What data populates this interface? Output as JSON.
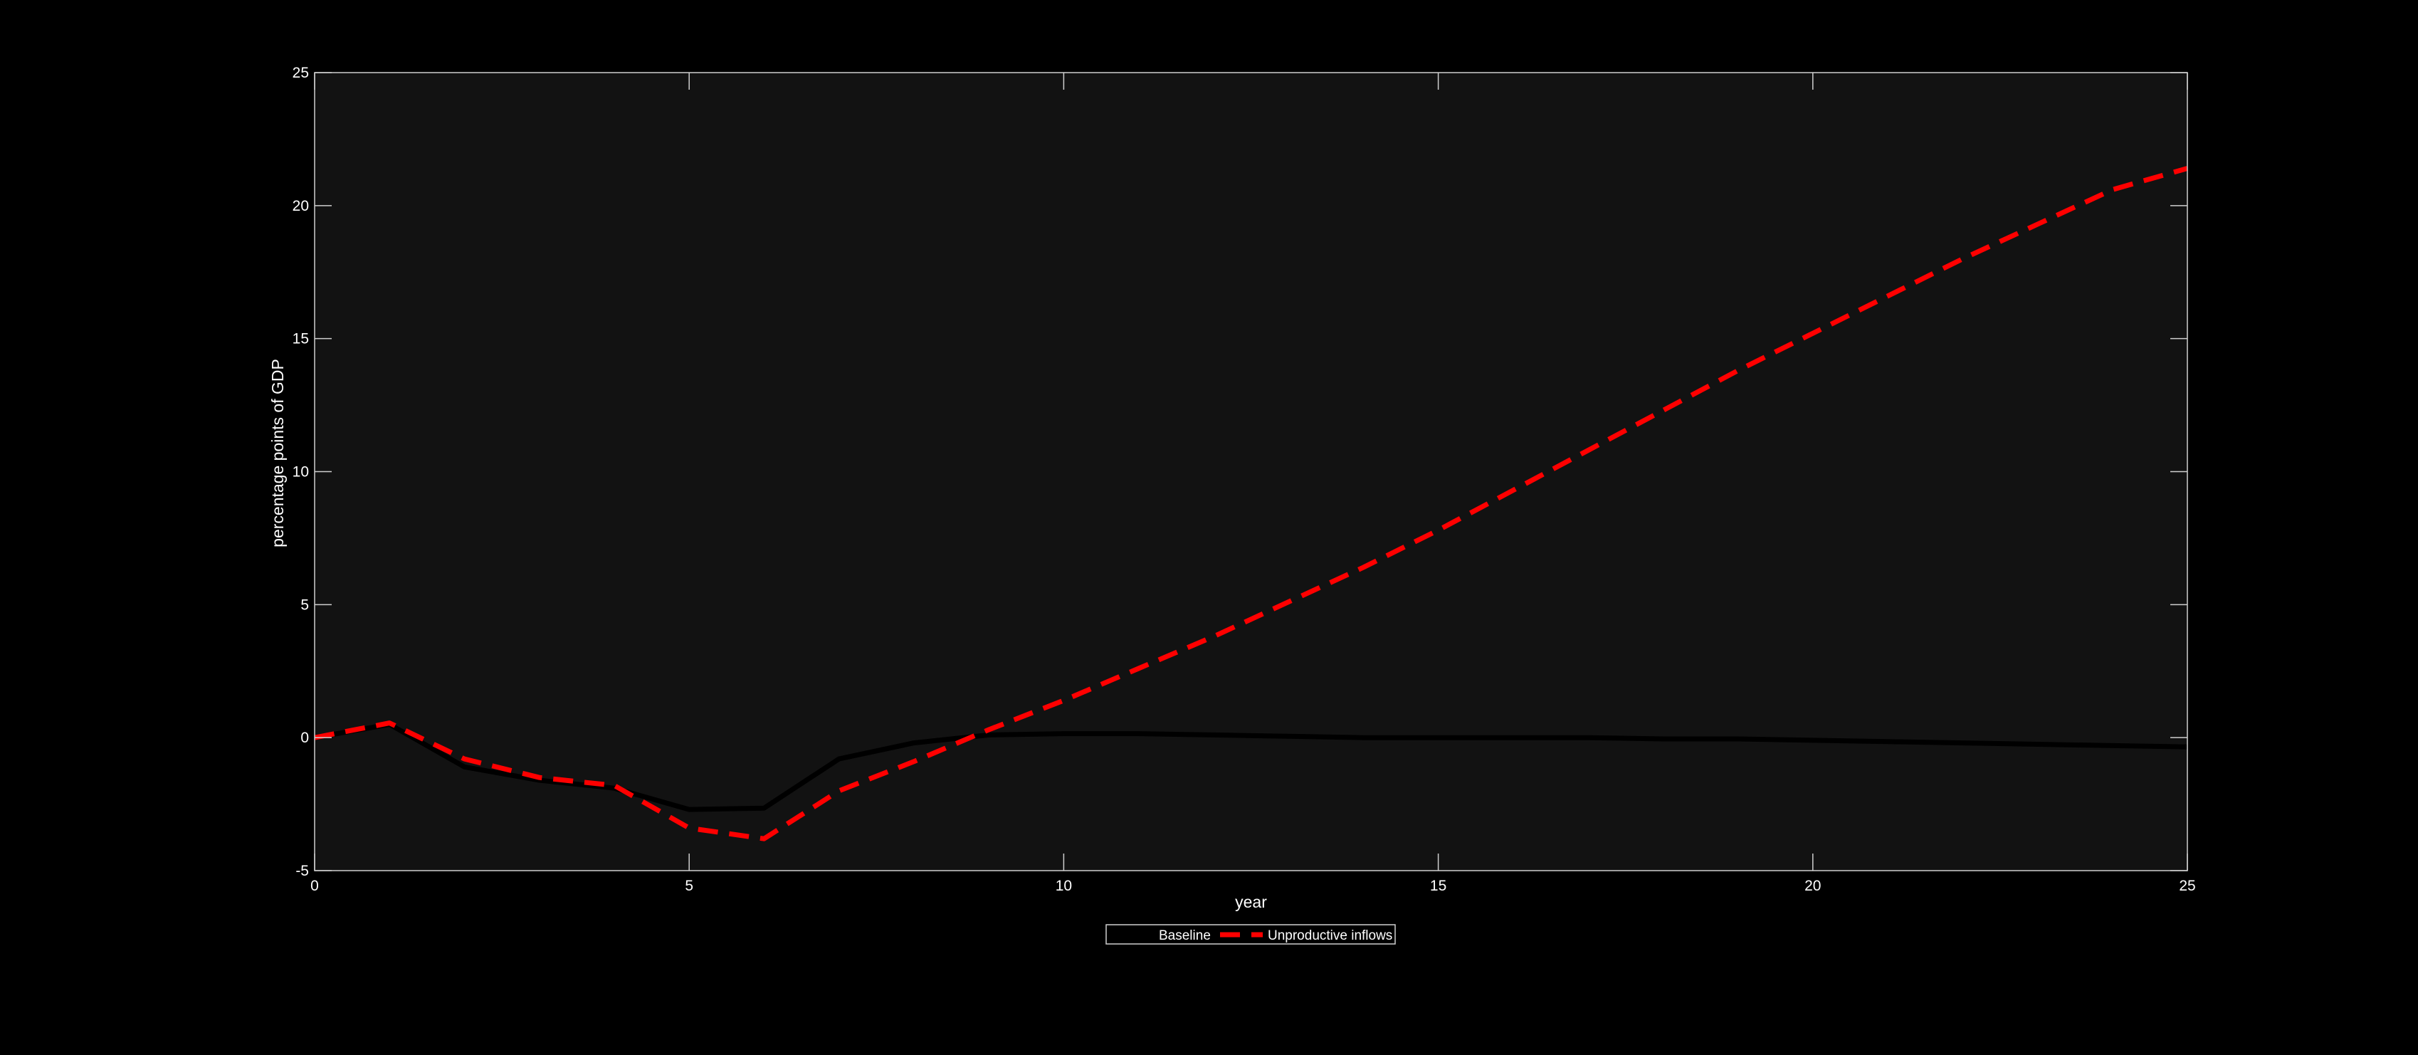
{
  "chart_data": {
    "type": "line",
    "title": "",
    "xlabel": "year",
    "ylabel": "percentage points of GDP",
    "xlim": [
      0,
      25
    ],
    "ylim": [
      -5,
      25
    ],
    "xticks": [
      0,
      5,
      10,
      15,
      20,
      25
    ],
    "yticks": [
      -5,
      0,
      5,
      10,
      15,
      20,
      25
    ],
    "grid": false,
    "legend": "bottom-center-outside",
    "background": "#121212",
    "series": [
      {
        "name": "Baseline",
        "color": "#000000",
        "style": "solid",
        "x": [
          0,
          1,
          2,
          3,
          4,
          5,
          6,
          7,
          8,
          9,
          10,
          11,
          12,
          13,
          14,
          15,
          16,
          17,
          18,
          19,
          20,
          21,
          22,
          23,
          24,
          25
        ],
        "y": [
          0,
          0.5,
          -1.1,
          -1.6,
          -1.9,
          -2.7,
          -2.65,
          -0.8,
          -0.2,
          0.1,
          0.15,
          0.15,
          0.1,
          0.05,
          0.0,
          0.0,
          0.0,
          0.0,
          -0.05,
          -0.05,
          -0.1,
          -0.15,
          -0.2,
          -0.25,
          -0.3,
          -0.35
        ]
      },
      {
        "name": "Unproductive inflows",
        "color": "#ff0000",
        "style": "dashed",
        "x": [
          0,
          1,
          2,
          3,
          4,
          5,
          6,
          7,
          8,
          9,
          10,
          11,
          12,
          13,
          14,
          15,
          16,
          17,
          18,
          19,
          20,
          21,
          22,
          23,
          24,
          25
        ],
        "y": [
          0,
          0.55,
          -0.8,
          -1.5,
          -1.8,
          -3.4,
          -3.8,
          -2.0,
          -0.9,
          0.3,
          1.4,
          2.6,
          3.8,
          5.1,
          6.4,
          7.8,
          9.3,
          10.8,
          12.3,
          13.8,
          15.2,
          16.6,
          18.0,
          19.3,
          20.6,
          21.4
        ]
      }
    ]
  }
}
